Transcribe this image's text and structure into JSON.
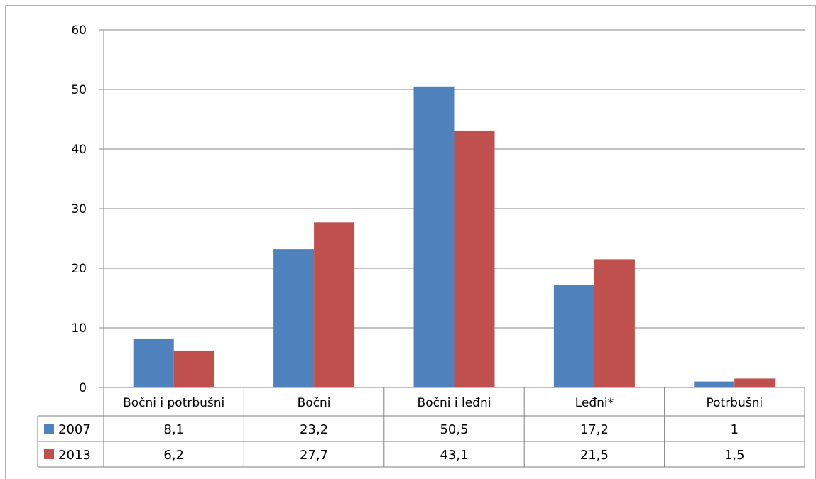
{
  "chart_data": {
    "type": "bar",
    "categories": [
      "Bočni i potrbušni",
      "Bočni",
      "Bočni i leđni",
      "Leđni*",
      "Potrbušni"
    ],
    "series": [
      {
        "name": "2007",
        "color": "#4F81BD",
        "values": [
          8.1,
          23.2,
          50.5,
          17.2,
          1
        ],
        "labels": [
          "8,1",
          "23,2",
          "50,5",
          "17,2",
          "1"
        ]
      },
      {
        "name": "2013",
        "color": "#C0504D",
        "values": [
          6.2,
          27.7,
          43.1,
          21.5,
          1.5
        ],
        "labels": [
          "6,2",
          "27,7",
          "43,1",
          "21,5",
          "1,5"
        ]
      }
    ],
    "yticks": [
      "0",
      "10",
      "20",
      "30",
      "40",
      "50",
      "60"
    ],
    "ylim": [
      0,
      60
    ],
    "grid": true,
    "legend": "data-table"
  }
}
